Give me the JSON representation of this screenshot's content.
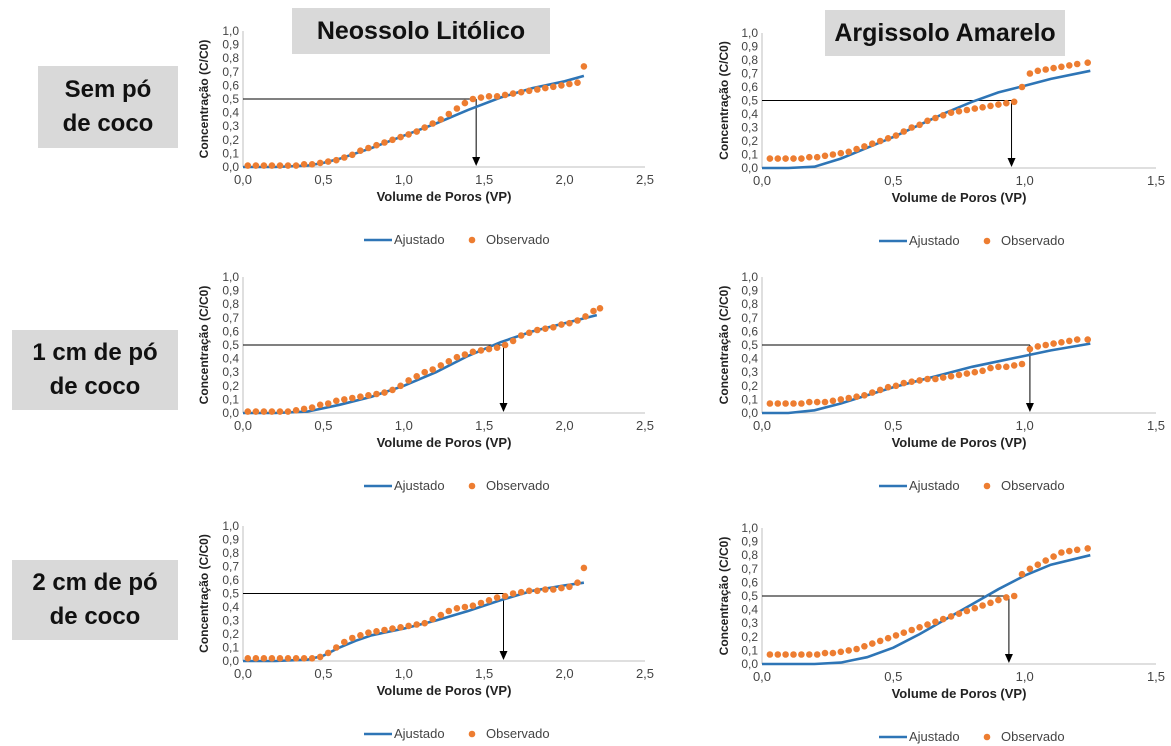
{
  "column_headers": [
    "Neossolo Litólico",
    "Argissolo Amarelo"
  ],
  "row_labels": [
    "Sem pó\nde coco",
    "1 cm de pó\nde coco",
    "2 cm de pó\nde coco"
  ],
  "colors": {
    "fitted": "#2e75b6",
    "observed": "#ed7d31",
    "reference": "#000000",
    "axis": "#bfbfbf",
    "label_bg": "#d9d9d9"
  },
  "chart_data": [
    {
      "type": "scatter",
      "row": 0,
      "col": 0,
      "xlabel": "Volume de Poros (VP)",
      "ylabel": "Concentração (C/C0)",
      "xlim": [
        0,
        2.5
      ],
      "ylim": [
        0,
        1
      ],
      "xticks": [
        "0,0",
        "0,5",
        "1,0",
        "1,5",
        "2,0",
        "2,5"
      ],
      "xtick_values": [
        0,
        0.5,
        1,
        1.5,
        2,
        2.5
      ],
      "yticks": [
        "0,0",
        "0,1",
        "0,2",
        "0,3",
        "0,4",
        "0,5",
        "0,6",
        "0,7",
        "0,8",
        "0,9",
        "1,0"
      ],
      "reference_line": {
        "y": 0.5,
        "x_end": 1.45
      },
      "legend": [
        "Ajustado",
        "Observado"
      ],
      "series": [
        {
          "name": "Ajustado",
          "kind": "line",
          "x": [
            0.0,
            0.2,
            0.4,
            0.5,
            0.6,
            0.8,
            1.0,
            1.2,
            1.4,
            1.6,
            1.8,
            2.0,
            2.12
          ],
          "y": [
            0.0,
            0.0,
            0.01,
            0.03,
            0.06,
            0.14,
            0.23,
            0.32,
            0.42,
            0.51,
            0.58,
            0.63,
            0.67
          ]
        },
        {
          "name": "Observado",
          "kind": "scatter",
          "x": [
            0.03,
            0.08,
            0.13,
            0.18,
            0.23,
            0.28,
            0.33,
            0.38,
            0.43,
            0.48,
            0.53,
            0.58,
            0.63,
            0.68,
            0.73,
            0.78,
            0.83,
            0.88,
            0.93,
            0.98,
            1.03,
            1.08,
            1.13,
            1.18,
            1.23,
            1.28,
            1.33,
            1.38,
            1.43,
            1.48,
            1.53,
            1.58,
            1.63,
            1.68,
            1.73,
            1.78,
            1.83,
            1.88,
            1.93,
            1.98,
            2.03,
            2.08,
            2.12
          ],
          "y": [
            0.01,
            0.01,
            0.01,
            0.01,
            0.01,
            0.01,
            0.01,
            0.02,
            0.02,
            0.03,
            0.04,
            0.05,
            0.07,
            0.09,
            0.12,
            0.14,
            0.16,
            0.18,
            0.2,
            0.22,
            0.24,
            0.26,
            0.29,
            0.32,
            0.35,
            0.39,
            0.43,
            0.47,
            0.5,
            0.51,
            0.52,
            0.52,
            0.53,
            0.54,
            0.55,
            0.56,
            0.57,
            0.58,
            0.59,
            0.6,
            0.61,
            0.62,
            0.74
          ]
        }
      ]
    },
    {
      "type": "scatter",
      "row": 0,
      "col": 1,
      "xlabel": "Volume de Poros (VP)",
      "ylabel": "Concentração (C/C0)",
      "xlim": [
        0,
        1.5
      ],
      "ylim": [
        0,
        1
      ],
      "xticks": [
        "0,0",
        "0,5",
        "1,0",
        "1,5"
      ],
      "xtick_values": [
        0,
        0.5,
        1,
        1.5
      ],
      "yticks": [
        "0,0",
        "0,1",
        "0,2",
        "0,3",
        "0,4",
        "0,5",
        "0,6",
        "0,7",
        "0,8",
        "0,9",
        "1,0"
      ],
      "reference_line": {
        "y": 0.5,
        "x_end": 0.95
      },
      "legend": [
        "Ajustado",
        "Observado"
      ],
      "series": [
        {
          "name": "Ajustado",
          "kind": "line",
          "x": [
            0.0,
            0.1,
            0.2,
            0.3,
            0.4,
            0.5,
            0.6,
            0.7,
            0.8,
            0.9,
            1.0,
            1.1,
            1.25
          ],
          "y": [
            0.0,
            0.0,
            0.01,
            0.07,
            0.15,
            0.23,
            0.32,
            0.41,
            0.49,
            0.56,
            0.61,
            0.66,
            0.72
          ]
        },
        {
          "name": "Observado",
          "kind": "scatter",
          "x": [
            0.03,
            0.06,
            0.09,
            0.12,
            0.15,
            0.18,
            0.21,
            0.24,
            0.27,
            0.3,
            0.33,
            0.36,
            0.39,
            0.42,
            0.45,
            0.48,
            0.51,
            0.54,
            0.57,
            0.6,
            0.63,
            0.66,
            0.69,
            0.72,
            0.75,
            0.78,
            0.81,
            0.84,
            0.87,
            0.9,
            0.93,
            0.96,
            0.99,
            1.02,
            1.05,
            1.08,
            1.11,
            1.14,
            1.17,
            1.2,
            1.24
          ],
          "y": [
            0.07,
            0.07,
            0.07,
            0.07,
            0.07,
            0.08,
            0.08,
            0.09,
            0.1,
            0.11,
            0.12,
            0.14,
            0.16,
            0.18,
            0.2,
            0.22,
            0.24,
            0.27,
            0.3,
            0.32,
            0.35,
            0.37,
            0.39,
            0.41,
            0.42,
            0.43,
            0.44,
            0.45,
            0.46,
            0.47,
            0.48,
            0.49,
            0.6,
            0.7,
            0.72,
            0.73,
            0.74,
            0.75,
            0.76,
            0.77,
            0.78
          ]
        }
      ]
    },
    {
      "type": "scatter",
      "row": 1,
      "col": 0,
      "xlabel": "Volume de Poros (VP)",
      "ylabel": "Concentração (C/C0)",
      "xlim": [
        0,
        2.5
      ],
      "ylim": [
        0,
        1
      ],
      "xticks": [
        "0,0",
        "0,5",
        "1,0",
        "1,5",
        "2,0",
        "2,5"
      ],
      "xtick_values": [
        0,
        0.5,
        1,
        1.5,
        2,
        2.5
      ],
      "yticks": [
        "0,0",
        "0,1",
        "0,2",
        "0,3",
        "0,4",
        "0,5",
        "0,6",
        "0,7",
        "0,8",
        "0,9",
        "1,0"
      ],
      "reference_line": {
        "y": 0.5,
        "x_end": 1.62
      },
      "legend": [
        "Ajustado",
        "Observado"
      ],
      "series": [
        {
          "name": "Ajustado",
          "kind": "line",
          "x": [
            0.0,
            0.2,
            0.4,
            0.6,
            0.8,
            1.0,
            1.2,
            1.4,
            1.6,
            1.8,
            2.0,
            2.2
          ],
          "y": [
            0.0,
            0.0,
            0.01,
            0.06,
            0.12,
            0.2,
            0.3,
            0.42,
            0.52,
            0.6,
            0.66,
            0.72
          ]
        },
        {
          "name": "Observado",
          "kind": "scatter",
          "x": [
            0.03,
            0.08,
            0.13,
            0.18,
            0.23,
            0.28,
            0.33,
            0.38,
            0.43,
            0.48,
            0.53,
            0.58,
            0.63,
            0.68,
            0.73,
            0.78,
            0.83,
            0.88,
            0.93,
            0.98,
            1.03,
            1.08,
            1.13,
            1.18,
            1.23,
            1.28,
            1.33,
            1.38,
            1.43,
            1.48,
            1.53,
            1.58,
            1.63,
            1.68,
            1.73,
            1.78,
            1.83,
            1.88,
            1.93,
            1.98,
            2.03,
            2.08,
            2.13,
            2.18,
            2.22
          ],
          "y": [
            0.01,
            0.01,
            0.01,
            0.01,
            0.01,
            0.01,
            0.02,
            0.03,
            0.04,
            0.06,
            0.07,
            0.09,
            0.1,
            0.11,
            0.12,
            0.13,
            0.14,
            0.15,
            0.17,
            0.2,
            0.24,
            0.27,
            0.3,
            0.32,
            0.35,
            0.38,
            0.41,
            0.43,
            0.45,
            0.46,
            0.47,
            0.48,
            0.5,
            0.53,
            0.57,
            0.59,
            0.61,
            0.62,
            0.63,
            0.65,
            0.66,
            0.68,
            0.71,
            0.75,
            0.77
          ]
        }
      ]
    },
    {
      "type": "scatter",
      "row": 1,
      "col": 1,
      "xlabel": "Volume de Poros (VP)",
      "ylabel": "Concentração (C/C0)",
      "xlim": [
        0,
        1.5
      ],
      "ylim": [
        0,
        1
      ],
      "xticks": [
        "0,0",
        "0,5",
        "1,0",
        "1,5"
      ],
      "xtick_values": [
        0,
        0.5,
        1,
        1.5
      ],
      "yticks": [
        "0,0",
        "0,1",
        "0,2",
        "0,3",
        "0,4",
        "0,5",
        "0,6",
        "0,7",
        "0,8",
        "0,9",
        "1,0"
      ],
      "reference_line": {
        "y": 0.5,
        "x_end": 1.02
      },
      "legend": [
        "Ajustado",
        "Observado"
      ],
      "series": [
        {
          "name": "Ajustado",
          "kind": "line",
          "x": [
            0.0,
            0.1,
            0.2,
            0.3,
            0.4,
            0.5,
            0.6,
            0.7,
            0.8,
            0.9,
            1.0,
            1.1,
            1.25
          ],
          "y": [
            0.0,
            0.0,
            0.02,
            0.07,
            0.13,
            0.19,
            0.24,
            0.29,
            0.34,
            0.38,
            0.42,
            0.46,
            0.51
          ]
        },
        {
          "name": "Observado",
          "kind": "scatter",
          "x": [
            0.03,
            0.06,
            0.09,
            0.12,
            0.15,
            0.18,
            0.21,
            0.24,
            0.27,
            0.3,
            0.33,
            0.36,
            0.39,
            0.42,
            0.45,
            0.48,
            0.51,
            0.54,
            0.57,
            0.6,
            0.63,
            0.66,
            0.69,
            0.72,
            0.75,
            0.78,
            0.81,
            0.84,
            0.87,
            0.9,
            0.93,
            0.96,
            0.99,
            1.02,
            1.05,
            1.08,
            1.11,
            1.14,
            1.17,
            1.2,
            1.24
          ],
          "y": [
            0.07,
            0.07,
            0.07,
            0.07,
            0.07,
            0.08,
            0.08,
            0.08,
            0.09,
            0.1,
            0.11,
            0.12,
            0.13,
            0.15,
            0.17,
            0.19,
            0.2,
            0.22,
            0.23,
            0.24,
            0.25,
            0.25,
            0.26,
            0.27,
            0.28,
            0.29,
            0.3,
            0.31,
            0.33,
            0.34,
            0.34,
            0.35,
            0.36,
            0.47,
            0.49,
            0.5,
            0.51,
            0.52,
            0.53,
            0.54,
            0.54
          ]
        }
      ]
    },
    {
      "type": "scatter",
      "row": 2,
      "col": 0,
      "xlabel": "Volume de Poros (VP)",
      "ylabel": "Concentração (C/C0)",
      "xlim": [
        0,
        2.5
      ],
      "ylim": [
        0,
        1
      ],
      "xticks": [
        "0,0",
        "0,5",
        "1,0",
        "1,5",
        "2,0",
        "2,5"
      ],
      "xtick_values": [
        0,
        0.5,
        1,
        1.5,
        2,
        2.5
      ],
      "yticks": [
        "0,0",
        "0,1",
        "0,2",
        "0,3",
        "0,4",
        "0,5",
        "0,6",
        "0,7",
        "0,8",
        "0,9",
        "1,0"
      ],
      "reference_line": {
        "y": 0.5,
        "x_end": 1.62
      },
      "legend": [
        "Ajustado",
        "Observado"
      ],
      "series": [
        {
          "name": "Ajustado",
          "kind": "line",
          "x": [
            0.0,
            0.2,
            0.4,
            0.5,
            0.6,
            0.7,
            0.8,
            1.0,
            1.2,
            1.4,
            1.6,
            1.8,
            2.0,
            2.12
          ],
          "y": [
            0.0,
            0.0,
            0.01,
            0.04,
            0.1,
            0.15,
            0.19,
            0.24,
            0.3,
            0.37,
            0.45,
            0.52,
            0.56,
            0.58
          ]
        },
        {
          "name": "Observado",
          "kind": "scatter",
          "x": [
            0.03,
            0.08,
            0.13,
            0.18,
            0.23,
            0.28,
            0.33,
            0.38,
            0.43,
            0.48,
            0.53,
            0.58,
            0.63,
            0.68,
            0.73,
            0.78,
            0.83,
            0.88,
            0.93,
            0.98,
            1.03,
            1.08,
            1.13,
            1.18,
            1.23,
            1.28,
            1.33,
            1.38,
            1.43,
            1.48,
            1.53,
            1.58,
            1.63,
            1.68,
            1.73,
            1.78,
            1.83,
            1.88,
            1.93,
            1.98,
            2.03,
            2.08,
            2.12
          ],
          "y": [
            0.02,
            0.02,
            0.02,
            0.02,
            0.02,
            0.02,
            0.02,
            0.02,
            0.02,
            0.03,
            0.06,
            0.1,
            0.14,
            0.17,
            0.19,
            0.21,
            0.22,
            0.23,
            0.24,
            0.25,
            0.26,
            0.27,
            0.28,
            0.31,
            0.34,
            0.37,
            0.39,
            0.4,
            0.41,
            0.43,
            0.45,
            0.47,
            0.48,
            0.5,
            0.51,
            0.52,
            0.52,
            0.53,
            0.53,
            0.54,
            0.55,
            0.58,
            0.69
          ]
        }
      ]
    },
    {
      "type": "scatter",
      "row": 2,
      "col": 1,
      "xlabel": "Volume de Poros (VP)",
      "ylabel": "Concentração (C/C0)",
      "xlim": [
        0,
        1.5
      ],
      "ylim": [
        0,
        1
      ],
      "xticks": [
        "0,0",
        "0,5",
        "1,0",
        "1,5"
      ],
      "xtick_values": [
        0,
        0.5,
        1,
        1.5
      ],
      "yticks": [
        "0,0",
        "0,1",
        "0,2",
        "0,3",
        "0,4",
        "0,5",
        "0,6",
        "0,7",
        "0,8",
        "0,9",
        "1,0"
      ],
      "reference_line": {
        "y": 0.5,
        "x_end": 0.94
      },
      "legend": [
        "Ajustado",
        "Observado"
      ],
      "series": [
        {
          "name": "Ajustado",
          "kind": "line",
          "x": [
            0.0,
            0.1,
            0.2,
            0.3,
            0.35,
            0.4,
            0.5,
            0.6,
            0.7,
            0.8,
            0.9,
            1.0,
            1.1,
            1.25
          ],
          "y": [
            0.0,
            0.0,
            0.0,
            0.01,
            0.03,
            0.05,
            0.12,
            0.22,
            0.33,
            0.44,
            0.55,
            0.65,
            0.73,
            0.8
          ]
        },
        {
          "name": "Observado",
          "kind": "scatter",
          "x": [
            0.03,
            0.06,
            0.09,
            0.12,
            0.15,
            0.18,
            0.21,
            0.24,
            0.27,
            0.3,
            0.33,
            0.36,
            0.39,
            0.42,
            0.45,
            0.48,
            0.51,
            0.54,
            0.57,
            0.6,
            0.63,
            0.66,
            0.69,
            0.72,
            0.75,
            0.78,
            0.81,
            0.84,
            0.87,
            0.9,
            0.93,
            0.96,
            0.99,
            1.02,
            1.05,
            1.08,
            1.11,
            1.14,
            1.17,
            1.2,
            1.24
          ],
          "y": [
            0.07,
            0.07,
            0.07,
            0.07,
            0.07,
            0.07,
            0.07,
            0.08,
            0.08,
            0.09,
            0.1,
            0.11,
            0.13,
            0.15,
            0.17,
            0.19,
            0.21,
            0.23,
            0.25,
            0.27,
            0.29,
            0.31,
            0.33,
            0.35,
            0.37,
            0.39,
            0.41,
            0.43,
            0.45,
            0.47,
            0.49,
            0.5,
            0.66,
            0.7,
            0.73,
            0.76,
            0.79,
            0.82,
            0.83,
            0.84,
            0.85
          ]
        }
      ]
    }
  ]
}
